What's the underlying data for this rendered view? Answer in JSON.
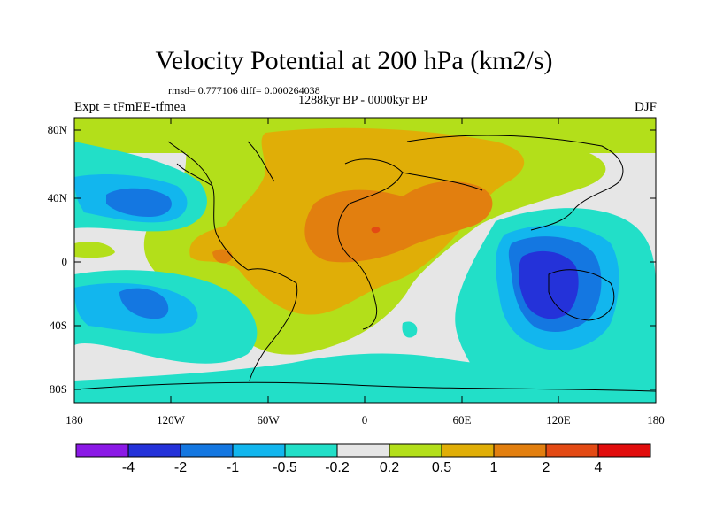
{
  "header": {
    "title": "Velocity Potential at 200 hPa (km2/s)",
    "stats": "rmsd= 0.777106 diff= 0.000264038",
    "period": "1288kyr BP - 0000kyr BP",
    "experiment": "Expt = tFmEE-tfmea",
    "season": "DJF"
  },
  "axes": {
    "y_ticks": [
      "80N",
      "40N",
      "0",
      "40S",
      "80S"
    ],
    "x_ticks": [
      "180",
      "120W",
      "60W",
      "0",
      "60E",
      "120E",
      "180"
    ]
  },
  "colorbar": {
    "labels": [
      "-4",
      "-2",
      "-1",
      "-0.5",
      "-0.2",
      "0.2",
      "0.5",
      "1",
      "2",
      "4"
    ],
    "colors": [
      "#8b19e6",
      "#2432d9",
      "#1477e1",
      "#12b6ee",
      "#22dfc8",
      "#e6e6e6",
      "#b3df1a",
      "#e0ae07",
      "#e27f0f",
      "#e34a14",
      "#e10d0d"
    ]
  },
  "regions": {
    "negative_strong": "Maritime Continent / Australia",
    "negative_moderate": "North Pacific and South Pacific",
    "positive": "Atlantic, Africa and Eurasia"
  }
}
